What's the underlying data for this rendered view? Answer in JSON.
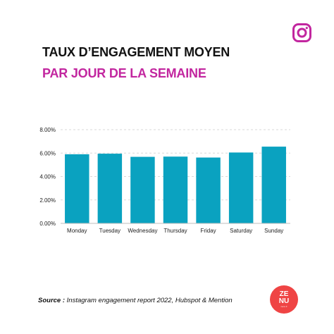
{
  "header": {
    "title_line1": "TAUX D’ENGAGEMENT MOYEN",
    "title_line2": "PAR JOUR DE LA SEMAINE"
  },
  "icons": {
    "social": "instagram-icon"
  },
  "colors": {
    "bar": "#0aa2c0",
    "title_accent": "#c2269f",
    "instagram": "#c2269f",
    "logo": "#ef4444"
  },
  "chart_data": {
    "type": "bar",
    "categories": [
      "Monday",
      "Tuesday",
      "Wednesday",
      "Thursday",
      "Friday",
      "Saturday",
      "Sunday"
    ],
    "values": [
      5.9,
      5.95,
      5.68,
      5.7,
      5.62,
      6.05,
      6.55
    ],
    "unit": "%",
    "ylim": [
      0,
      8
    ],
    "yticks": [
      "0.00%",
      "2.00%",
      "4.00%",
      "6.00%",
      "8.00%"
    ],
    "grid": true,
    "xlabel": "",
    "ylabel": ""
  },
  "footer": {
    "source_label": "Source :",
    "source_text": " Instagram engagement report 2022, Hubspot & Mention",
    "logo_line1": "ZE",
    "logo_line2": "NU",
    "logo_small": "zenu.fr"
  }
}
